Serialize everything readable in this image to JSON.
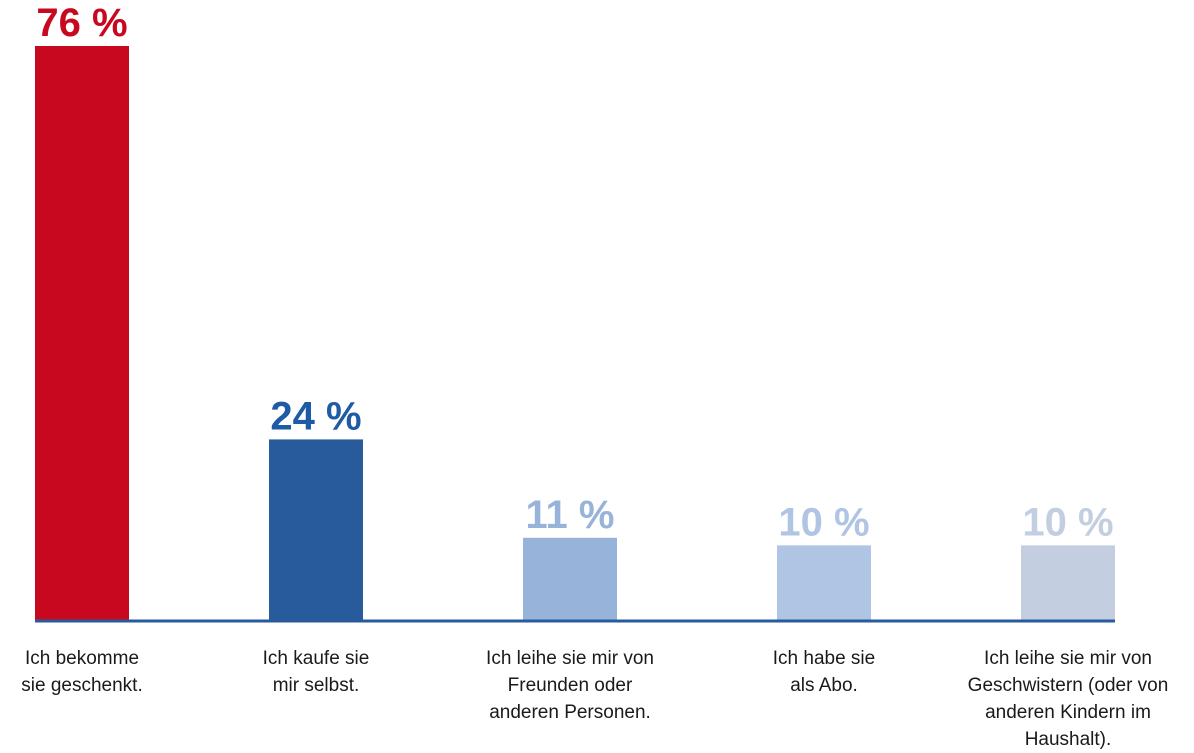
{
  "chart_data": {
    "type": "bar",
    "title": "",
    "xlabel": "",
    "ylabel": "",
    "ylim": [
      0,
      76
    ],
    "grid": false,
    "categories": [
      [
        "Ich bekomme",
        "sie geschenkt."
      ],
      [
        "Ich kaufe sie",
        "mir selbst."
      ],
      [
        "Ich leihe sie mir von",
        "Freunden oder",
        "anderen Personen."
      ],
      [
        "Ich habe sie",
        "als Abo."
      ],
      [
        "Ich leihe sie mir von",
        "Geschwistern (oder von",
        "anderen Kindern im",
        "Haushalt)."
      ]
    ],
    "values": [
      76,
      24,
      11,
      10,
      10
    ],
    "value_labels": [
      "76 %",
      "24 %",
      "11 %",
      "10 %",
      "10 %"
    ],
    "colors": [
      "#c8081f",
      "#285b9c",
      "#97b3da",
      "#b0c5e3",
      "#c3cfe0"
    ],
    "label_colors": [
      "#c8081f",
      "#1f5aa4",
      "#97b3da",
      "#b0c5e3",
      "#c3cfe0"
    ],
    "axis_color": "#285b9c"
  }
}
